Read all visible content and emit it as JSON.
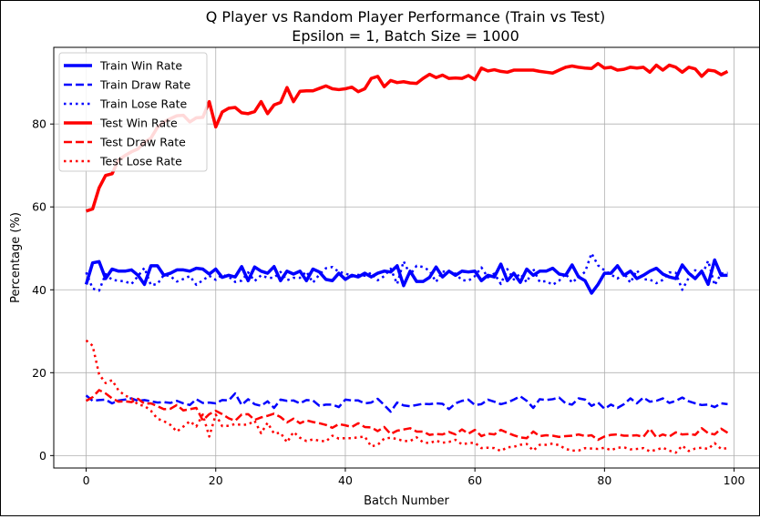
{
  "chart_data": {
    "type": "line",
    "title": "Q Player vs Random Player Performance (Train vs Test)",
    "subtitle": "Epsilon = 1, Batch Size = 1000",
    "xlabel": "Batch Number",
    "ylabel": "Percentage (%)",
    "xlim": [
      -5,
      104
    ],
    "ylim": [
      -3,
      98.5
    ],
    "xticks": [
      0,
      20,
      40,
      60,
      80,
      100
    ],
    "yticks": [
      0,
      20,
      40,
      60,
      80
    ],
    "grid": true,
    "legend_position": "top-left",
    "x": [
      0,
      1,
      2,
      3,
      4,
      5,
      6,
      7,
      8,
      9,
      10,
      11,
      12,
      13,
      14,
      15,
      16,
      17,
      18,
      19,
      20,
      21,
      22,
      23,
      24,
      25,
      26,
      27,
      28,
      29,
      30,
      31,
      32,
      33,
      34,
      35,
      36,
      37,
      38,
      39,
      40,
      41,
      42,
      43,
      44,
      45,
      46,
      47,
      48,
      49,
      50,
      51,
      52,
      53,
      54,
      55,
      56,
      57,
      58,
      59,
      60,
      61,
      62,
      63,
      64,
      65,
      66,
      67,
      68,
      69,
      70,
      71,
      72,
      73,
      74,
      75,
      76,
      77,
      78,
      79,
      80,
      81,
      82,
      83,
      84,
      85,
      86,
      87,
      88,
      89,
      90,
      91,
      92,
      93,
      94,
      95,
      96,
      97,
      98,
      99
    ],
    "series": [
      {
        "name": "Train Win Rate",
        "color": "#0000ff",
        "style": "solid",
        "values": [
          41.3,
          46.5,
          46.8,
          42.7,
          45,
          44.5,
          44.5,
          44.8,
          43.5,
          41.3,
          45.8,
          45.8,
          43.5,
          44,
          44.8,
          44.8,
          44.5,
          45.2,
          45,
          43.8,
          45,
          43,
          43.5,
          43.1,
          45.6,
          42.2,
          45.5,
          44.5,
          44,
          45.6,
          42.2,
          44.5,
          43.8,
          44.5,
          42.2,
          45,
          44.3,
          42.5,
          42.2,
          44,
          42.5,
          43.5,
          43.1,
          44,
          43.1,
          44,
          44.5,
          44.3,
          45.8,
          41,
          44.5,
          42,
          42,
          43,
          45.5,
          43.1,
          44.5,
          43.5,
          44.5,
          44.3,
          44.5,
          42.2,
          43.5,
          43.1,
          46.2,
          42.2,
          44,
          41.8,
          45,
          43.5,
          44.5,
          44.5,
          45.2,
          43.8,
          43.5,
          46,
          43.1,
          42.2,
          39.2,
          41.3,
          44,
          44,
          45.8,
          43.5,
          44.5,
          42.7,
          43.5,
          44.5,
          45.2,
          43.8,
          43.1,
          42.7,
          46,
          44,
          42.7,
          44.5,
          41.3,
          47.2,
          43.5,
          43.5
        ]
      },
      {
        "name": "Train Draw Rate",
        "color": "#0000ff",
        "style": "dashed",
        "values": [
          14.5,
          13.2,
          13.4,
          13.5,
          12.6,
          13.3,
          13.5,
          13.8,
          13.2,
          13.4,
          13.1,
          12.8,
          12.9,
          12.7,
          13.2,
          12.6,
          12.2,
          13.6,
          12.7,
          12.8,
          12.6,
          13.4,
          13.3,
          15,
          12.2,
          13.6,
          12.4,
          12,
          13.1,
          11.5,
          13.5,
          13.2,
          13.3,
          12.6,
          13.4,
          13.3,
          12,
          12.3,
          12.3,
          11.7,
          13.5,
          13.3,
          13.3,
          12.6,
          12.8,
          13.7,
          12.2,
          10.6,
          12.8,
          12.1,
          11.9,
          12.2,
          12.5,
          12.4,
          12.6,
          12.5,
          11.2,
          12.6,
          13.2,
          13.5,
          12.2,
          12.4,
          13.5,
          13,
          12.4,
          12.8,
          13.5,
          14.3,
          13.2,
          11.5,
          13.6,
          13.4,
          13.6,
          14,
          12.6,
          12.3,
          13.8,
          13.5,
          12,
          12.8,
          11.3,
          12.3,
          11.5,
          12.4,
          13.8,
          12.6,
          14,
          13,
          13.2,
          13.8,
          12.7,
          13.2,
          14,
          13.1,
          12.6,
          12.2,
          12.3,
          11.7,
          12.6,
          12.4
        ]
      },
      {
        "name": "Train Lose Rate",
        "color": "#0000ff",
        "style": "dotted",
        "values": [
          44.2,
          40.3,
          39.8,
          43.8,
          42.4,
          42.2,
          42,
          41.4,
          43.3,
          45.3,
          41.1,
          41.4,
          43.6,
          43.3,
          42,
          42.6,
          43.3,
          41.2,
          42.3,
          43.4,
          42.4,
          43.6,
          43.2,
          41.9,
          42.2,
          44.2,
          42.1,
          43.5,
          42.9,
          42.9,
          44.3,
          42.3,
          42.9,
          42.9,
          44.4,
          41.7,
          43.7,
          45.2,
          45.5,
          44.3,
          44,
          43.2,
          43.6,
          43.4,
          44.1,
          42.3,
          43.3,
          45.1,
          41.4,
          46.9,
          43.6,
          45.8,
          45.5,
          44.6,
          41.9,
          44.4,
          44.3,
          43.9,
          42.3,
          42.2,
          43.3,
          45.4,
          43,
          43.9,
          41.4,
          45,
          42.5,
          43.9,
          41.8,
          45,
          41.9,
          42.1,
          41.2,
          42.2,
          43.9,
          41.7,
          43.1,
          44.3,
          48.8,
          45.9,
          44.7,
          43.7,
          42.7,
          44.1,
          41.7,
          44.7,
          42.5,
          42.5,
          41.6,
          42.4,
          44.2,
          44.1,
          40,
          42.9,
          44.7,
          43.3,
          47,
          41.1,
          43.9,
          44.1
        ]
      },
      {
        "name": "Test Win Rate",
        "color": "#ff0000",
        "style": "solid",
        "values": [
          59,
          59.5,
          64.6,
          67.6,
          68,
          71.3,
          72.4,
          73.3,
          74,
          75.6,
          76.6,
          79.2,
          80.5,
          81.3,
          82,
          82.1,
          80.5,
          81.5,
          81.6,
          85.4,
          79.3,
          82.9,
          83.8,
          84,
          82.7,
          82.5,
          83,
          85.4,
          82.5,
          84.6,
          85.2,
          88.8,
          85.4,
          87.9,
          88,
          88,
          88.6,
          89.2,
          88.5,
          88.3,
          88.5,
          88.9,
          87.8,
          88.5,
          91,
          91.5,
          89,
          90.5,
          90,
          90.2,
          89.9,
          89.8,
          91,
          92,
          91.2,
          91.8,
          91,
          91.1,
          91,
          91.7,
          90.7,
          93.5,
          92.8,
          93.1,
          92.7,
          92.5,
          93,
          93,
          93,
          93,
          92.7,
          92.5,
          92.3,
          93,
          93.7,
          94,
          93.7,
          93.5,
          93.4,
          94.6,
          93.5,
          93.7,
          93,
          93.2,
          93.7,
          93.5,
          93.7,
          92.5,
          94.2,
          93,
          94.2,
          93.7,
          92.5,
          93.7,
          93.3,
          91.5,
          93,
          92.8,
          91.9,
          92.7
        ]
      },
      {
        "name": "Test Draw Rate",
        "color": "#ff0000",
        "style": "dashed",
        "values": [
          13.2,
          14.1,
          15.8,
          15,
          13.8,
          13,
          13.1,
          12.9,
          13.7,
          12.5,
          12.6,
          11.9,
          11.2,
          11.3,
          12.2,
          10.9,
          11.2,
          11.5,
          8.5,
          10,
          10.8,
          10,
          9,
          8.4,
          9.9,
          10,
          8.6,
          9.2,
          9.6,
          10.1,
          9.3,
          8,
          8.9,
          7.8,
          8.5,
          8.1,
          7.8,
          7.4,
          6.7,
          7.6,
          7.3,
          6.9,
          7.8,
          6.9,
          6.8,
          5.9,
          6.9,
          5.2,
          6,
          6.3,
          6.6,
          5.8,
          5.8,
          5,
          5.2,
          5.1,
          5.7,
          5.1,
          6.3,
          5.3,
          6.2,
          4.7,
          5.3,
          5.1,
          6.2,
          5.5,
          4.9,
          4.4,
          4.2,
          5.8,
          4.7,
          4.9,
          4.8,
          4.5,
          4.7,
          4.8,
          5.1,
          4.7,
          4.9,
          3.8,
          4.6,
          5,
          5.1,
          4.8,
          4.8,
          4.9,
          4.5,
          6.5,
          4.4,
          5.1,
          4.6,
          5.6,
          5.1,
          5.2,
          5,
          6.6,
          5.4,
          5.1,
          6.5,
          5.5
        ]
      },
      {
        "name": "Test Lose Rate",
        "color": "#ff0000",
        "style": "dotted",
        "values": [
          27.8,
          26.5,
          19.6,
          17.5,
          18.2,
          15.7,
          14.5,
          13.8,
          12.3,
          12,
          10.8,
          8.9,
          8.3,
          7.4,
          5.8,
          7,
          8.3,
          7,
          9.9,
          4.6,
          9.9,
          7.1,
          7.2,
          7.6,
          7.4,
          7.5,
          8.4,
          5.4,
          7.9,
          5.3,
          5.5,
          3.2,
          5.7,
          4.3,
          3.5,
          3.9,
          3.6,
          3.4,
          4.8,
          4.1,
          4.2,
          4.2,
          4.4,
          4.6,
          2.2,
          2.6,
          4.1,
          4.3,
          4,
          3.5,
          3.5,
          4.4,
          3.2,
          3,
          3.6,
          3.1,
          3.3,
          3.8,
          2.7,
          3,
          3.1,
          1.8,
          1.9,
          1.8,
          1.1,
          2,
          2.1,
          2.6,
          2.8,
          1.2,
          2.6,
          2.6,
          2.9,
          2.5,
          1.6,
          1.2,
          1.2,
          1.8,
          1.7,
          1.6,
          1.9,
          1.3,
          1.9,
          2,
          1.5,
          1.6,
          1.8,
          1,
          1.4,
          1.9,
          1.2,
          0.7,
          2.4,
          1.1,
          1.7,
          1.9,
          1.6,
          3,
          1.6,
          1.8
        ]
      }
    ]
  }
}
